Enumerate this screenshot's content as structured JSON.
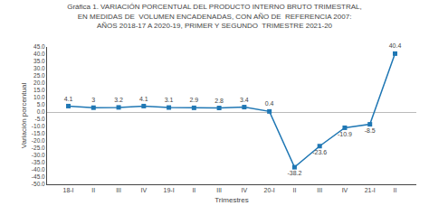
{
  "chart_data": {
    "type": "line",
    "title": "Gráfica 1. VARIACIÓN PORCENTUAL DEL PRODUCTO INTERNO BRUTO TRIMESTRAL,\nEN MEDIDAS DE  VOLUMEN ENCADENADAS, CON AÑO DE  REFERENCIA 2007:\nAÑOS 2018-17 A 2020-19, PRIMER Y SEGUNDO  TRIMESTRE 2021-20",
    "xlabel": "Trimestres",
    "ylabel": "Variación porcentual",
    "categories": [
      "18-I",
      "II",
      "III",
      "IV",
      "19-I",
      "II",
      "III",
      "IV",
      "20-I",
      "II",
      "III",
      "IV",
      "21-I",
      "II"
    ],
    "values": [
      4.1,
      3.0,
      3.2,
      4.1,
      3.1,
      2.9,
      2.8,
      3.4,
      0.4,
      -38.2,
      -23.6,
      -10.9,
      -8.5,
      40.4
    ],
    "ylim": [
      -50.0,
      45.0
    ],
    "yticks": [
      {
        "value": -50.0,
        "label": "-50.0"
      },
      {
        "value": -45.0,
        "label": "-45.0"
      },
      {
        "value": -40.0,
        "label": "-40.0"
      },
      {
        "value": -35.0,
        "label": "-35.0"
      },
      {
        "value": -30.0,
        "label": "-30.0"
      },
      {
        "value": -25.0,
        "label": "-25.0"
      },
      {
        "value": -20.0,
        "label": "-20.0"
      },
      {
        "value": -15.0,
        "label": "-15.0"
      },
      {
        "value": -10.0,
        "label": "-10.0"
      },
      {
        "value": -5.0,
        "label": "-5.0"
      },
      {
        "value": 0.0,
        "label": "0.0"
      },
      {
        "value": 5.0,
        "label": "5.0"
      },
      {
        "value": 10.0,
        "label": "10.0"
      },
      {
        "value": 15.0,
        "label": "15.0"
      },
      {
        "value": 20.0,
        "label": "20.0"
      },
      {
        "value": 25.0,
        "label": "25.0"
      },
      {
        "value": 30.0,
        "label": "30.0"
      },
      {
        "value": 35.0,
        "label": "35.0"
      },
      {
        "value": 40.0,
        "label": "40.0"
      },
      {
        "value": 45.0,
        "label": "45.0"
      }
    ],
    "marker": "square",
    "data_labels": true,
    "grid": false
  }
}
